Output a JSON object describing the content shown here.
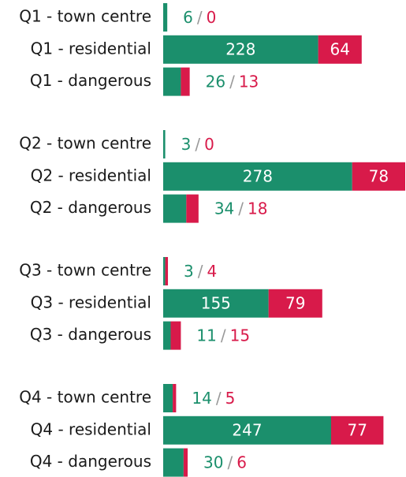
{
  "chart_data": {
    "type": "bar",
    "orientation": "horizontal",
    "stacked": true,
    "categories": [
      "Q1 - town centre",
      "Q1 - residential",
      "Q1 - dangerous",
      "Q2 - town centre",
      "Q2 - residential",
      "Q2 - dangerous",
      "Q3 - town centre",
      "Q3 - residential",
      "Q3 - dangerous",
      "Q4 - town centre",
      "Q4 - residential",
      "Q4 - dangerous"
    ],
    "series": [
      {
        "color": "#1b8f6c",
        "values": [
          6,
          228,
          26,
          3,
          278,
          34,
          3,
          155,
          11,
          14,
          247,
          30
        ]
      },
      {
        "color": "#d81a4a",
        "values": [
          0,
          64,
          13,
          0,
          78,
          18,
          4,
          79,
          15,
          5,
          77,
          6
        ]
      }
    ],
    "value_separator": "/",
    "xlim": [
      0,
      356
    ]
  }
}
